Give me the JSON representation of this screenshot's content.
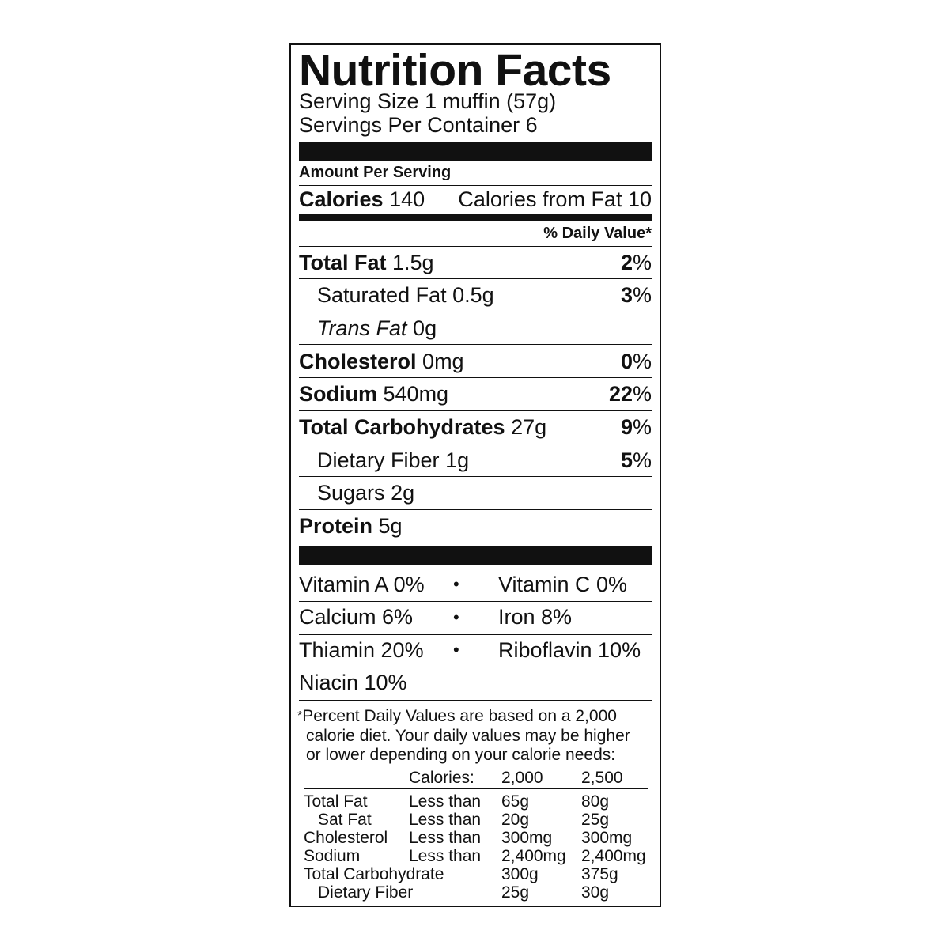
{
  "title": "Nutrition Facts",
  "serving_size": "Serving Size 1 muffin (57g)",
  "servings_per_container": "Servings Per Container 6",
  "amount_per_serving": "Amount Per Serving",
  "calories": {
    "label": "Calories",
    "value": "140",
    "from_fat": "Calories from Fat 10"
  },
  "daily_value_header": "% Daily Value*",
  "nutrients": [
    {
      "label": "Total Fat",
      "amount": "1.5g",
      "dv": "2",
      "bold": true
    },
    {
      "label": "Saturated Fat",
      "amount": "0.5g",
      "dv": "3"
    },
    {
      "label": "Trans Fat",
      "amount": "0g",
      "dv": ""
    },
    {
      "label": "Cholesterol",
      "amount": "0mg",
      "dv": "0",
      "bold": true
    },
    {
      "label": "Sodium",
      "amount": "540mg",
      "dv": "22",
      "bold": true
    },
    {
      "label": "Total Carbohydrates",
      "amount": "27g",
      "dv": "9",
      "bold": true
    },
    {
      "label": "Dietary Fiber",
      "amount": "1g",
      "dv": "5"
    },
    {
      "label": "Sugars",
      "amount": "2g",
      "dv": ""
    },
    {
      "label": "Protein",
      "amount": "5g",
      "dv": "",
      "bold": true
    }
  ],
  "percent_sign": "%",
  "bullet": "•",
  "vitamins": [
    [
      "Vitamin A 0%",
      "Vitamin C 0%"
    ],
    [
      "Calcium 6%",
      "Iron 8%"
    ],
    [
      "Thiamin 20%",
      "Riboflavin 10%"
    ],
    [
      "Niacin 10%",
      ""
    ]
  ],
  "footnote": {
    "asterisk": "*",
    "lines": [
      "Percent Daily Values are based on a 2,000",
      "calorie diet. Your daily values may be higher",
      "or lower depending on your calorie needs:"
    ],
    "header": [
      "",
      "Calories:",
      "2,000",
      "2,500"
    ],
    "rows": [
      [
        "Total Fat",
        "Less than",
        "65g",
        "80g"
      ],
      [
        "Sat Fat",
        "Less than",
        "20g",
        "25g"
      ],
      [
        "Cholesterol",
        "Less than",
        "300mg",
        "300mg"
      ],
      [
        "Sodium",
        "Less than",
        "2,400mg",
        "2,400mg"
      ],
      [
        "Total Carbohydrate",
        "",
        "300g",
        "375g"
      ],
      [
        "Dietary Fiber",
        "",
        "25g",
        "30g"
      ]
    ]
  }
}
